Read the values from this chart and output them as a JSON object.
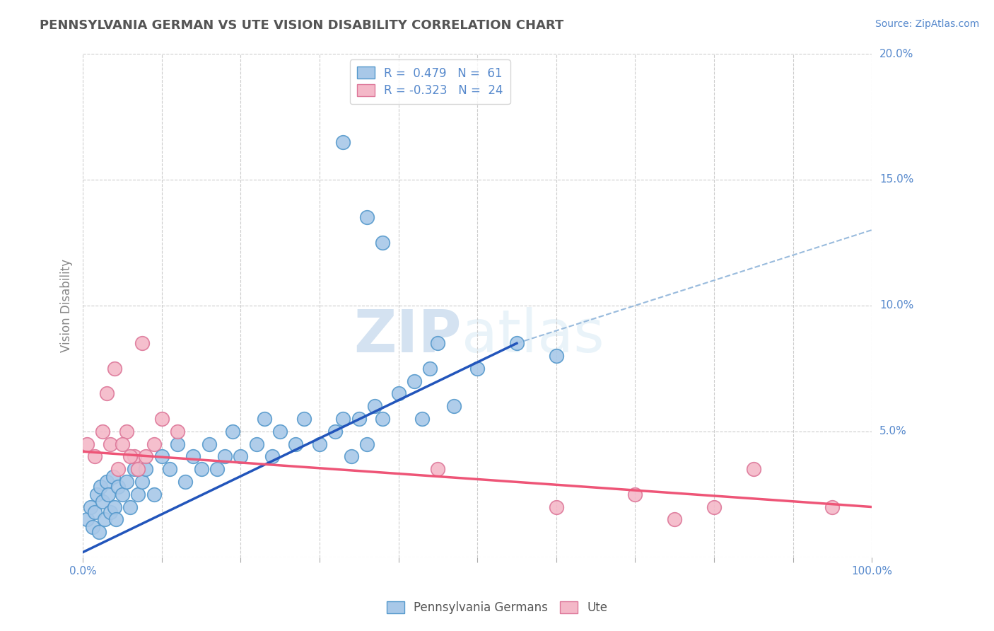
{
  "title": "PENNSYLVANIA GERMAN VS UTE VISION DISABILITY CORRELATION CHART",
  "source_text": "Source: ZipAtlas.com",
  "ylabel": "Vision Disability",
  "watermark": "ZIPatlas",
  "xlim": [
    0,
    100
  ],
  "ylim": [
    0,
    20
  ],
  "xticks": [
    0,
    10,
    20,
    30,
    40,
    50,
    60,
    70,
    80,
    90,
    100
  ],
  "yticks": [
    0,
    5,
    10,
    15,
    20
  ],
  "ytick_labels_right": [
    "",
    "5.0%",
    "10.0%",
    "15.0%",
    "20.0%"
  ],
  "xtick_labels": [
    "0.0%",
    "",
    "",
    "",
    "",
    "",
    "",
    "",
    "",
    "",
    "100.0%"
  ],
  "legend_entries": [
    {
      "label": "R =  0.479   N =  61",
      "color": "#a8c8e8"
    },
    {
      "label": "R = -0.323   N =  24",
      "color": "#f4b8c8"
    }
  ],
  "blue_scatter_x": [
    0.5,
    1.0,
    1.2,
    1.5,
    1.8,
    2.0,
    2.2,
    2.5,
    2.8,
    3.0,
    3.2,
    3.5,
    3.8,
    4.0,
    4.2,
    4.5,
    5.0,
    5.5,
    6.0,
    6.5,
    7.0,
    7.5,
    8.0,
    9.0,
    10.0,
    11.0,
    12.0,
    13.0,
    14.0,
    15.0,
    16.0,
    17.0,
    18.0,
    19.0,
    20.0,
    22.0,
    23.0,
    24.0,
    25.0,
    27.0,
    28.0,
    30.0,
    32.0,
    33.0,
    34.0,
    35.0,
    36.0,
    37.0,
    38.0,
    40.0,
    42.0,
    43.0,
    44.0,
    45.0,
    47.0,
    50.0,
    55.0,
    60.0,
    38.0,
    33.0,
    36.0
  ],
  "blue_scatter_y": [
    1.5,
    2.0,
    1.2,
    1.8,
    2.5,
    1.0,
    2.8,
    2.2,
    1.5,
    3.0,
    2.5,
    1.8,
    3.2,
    2.0,
    1.5,
    2.8,
    2.5,
    3.0,
    2.0,
    3.5,
    2.5,
    3.0,
    3.5,
    2.5,
    4.0,
    3.5,
    4.5,
    3.0,
    4.0,
    3.5,
    4.5,
    3.5,
    4.0,
    5.0,
    4.0,
    4.5,
    5.5,
    4.0,
    5.0,
    4.5,
    5.5,
    4.5,
    5.0,
    5.5,
    4.0,
    5.5,
    4.5,
    6.0,
    5.5,
    6.5,
    7.0,
    5.5,
    7.5,
    8.5,
    6.0,
    7.5,
    8.5,
    8.0,
    12.5,
    16.5,
    13.5
  ],
  "pink_scatter_x": [
    0.5,
    1.5,
    2.5,
    3.5,
    4.5,
    5.5,
    6.5,
    7.5,
    3.0,
    4.0,
    5.0,
    6.0,
    7.0,
    8.0,
    9.0,
    10.0,
    12.0,
    45.0,
    60.0,
    70.0,
    75.0,
    80.0,
    85.0,
    95.0
  ],
  "pink_scatter_y": [
    4.5,
    4.0,
    5.0,
    4.5,
    3.5,
    5.0,
    4.0,
    8.5,
    6.5,
    7.5,
    4.5,
    4.0,
    3.5,
    4.0,
    4.5,
    5.5,
    5.0,
    3.5,
    2.0,
    2.5,
    1.5,
    2.0,
    3.5,
    2.0
  ],
  "blue_line_x": [
    0,
    55
  ],
  "blue_line_y": [
    0.2,
    8.5
  ],
  "pink_line_x": [
    0,
    100
  ],
  "pink_line_y": [
    4.2,
    2.0
  ],
  "dash_line_x": [
    55,
    100
  ],
  "dash_line_y": [
    8.5,
    13.0
  ],
  "bg_color": "#ffffff",
  "grid_color": "#cccccc",
  "blue_dot_color": "#a8c8e8",
  "pink_dot_color": "#f4b8c8",
  "blue_dot_edge": "#5599cc",
  "pink_dot_edge": "#dd7799",
  "blue_line_color": "#2255bb",
  "pink_line_color": "#ee5577",
  "dash_line_color": "#99bbdd",
  "title_color": "#555555",
  "watermark_color": "#cce0f0",
  "axis_label_color": "#5588cc",
  "ylabel_color": "#888888"
}
